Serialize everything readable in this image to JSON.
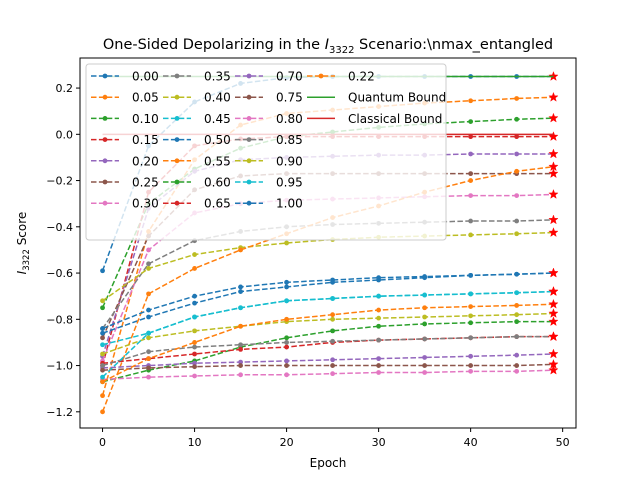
{
  "chart_data": {
    "type": "line",
    "title": {
      "pre": "One-Sided Depolarizing in the ",
      "sym": "I",
      "sub": "3322",
      "post": " Scenario:\\nmax_entangled"
    },
    "xlabel": "Epoch",
    "ylabel": {
      "sym": "I",
      "sub": "3322",
      "post": " Score"
    },
    "xlim": [
      -2.45,
      51.45
    ],
    "ylim": [
      -1.27,
      0.33
    ],
    "xticks": [
      0,
      10,
      20,
      30,
      40,
      50
    ],
    "yticks": [
      -1.2,
      -1.0,
      -0.8,
      -0.6,
      -0.4,
      -0.2,
      0.0,
      0.2
    ],
    "ytick_labels": [
      "−1.2",
      "−1.0",
      "−0.8",
      "−0.6",
      "−0.4",
      "−0.2",
      "0.0",
      "0.2"
    ],
    "x": [
      0,
      5,
      10,
      15,
      20,
      25,
      30,
      35,
      40,
      45,
      49
    ],
    "series": [
      {
        "name": "0.00",
        "color": "#1f77b4",
        "values": [
          -0.59,
          -0.05,
          0.14,
          0.22,
          0.245,
          0.25,
          0.25,
          0.25,
          0.25,
          0.25,
          0.25
        ]
      },
      {
        "name": "0.05",
        "color": "#ff7f0e",
        "values": [
          -1.13,
          -0.42,
          -0.11,
          0.04,
          0.09,
          0.105,
          0.12,
          0.135,
          0.145,
          0.155,
          0.16
        ]
      },
      {
        "name": "0.10",
        "color": "#2ca02c",
        "values": [
          -0.75,
          -0.3,
          -0.15,
          -0.06,
          -0.01,
          0.01,
          0.03,
          0.045,
          0.055,
          0.065,
          0.07
        ]
      },
      {
        "name": "0.15",
        "color": "#d62728",
        "values": [
          -1.0,
          -0.25,
          -0.05,
          -0.02,
          -0.01,
          -0.01,
          -0.01,
          -0.01,
          -0.01,
          -0.01,
          -0.01
        ]
      },
      {
        "name": "0.20",
        "color": "#9467bd",
        "values": [
          -0.96,
          -0.32,
          -0.16,
          -0.11,
          -0.1,
          -0.095,
          -0.09,
          -0.09,
          -0.085,
          -0.085,
          -0.085
        ]
      },
      {
        "name": "0.25",
        "color": "#8c564b",
        "values": [
          -0.88,
          -0.44,
          -0.24,
          -0.18,
          -0.17,
          -0.17,
          -0.17,
          -0.17,
          -0.17,
          -0.17,
          -0.17
        ]
      },
      {
        "name": "0.30",
        "color": "#e377c2",
        "values": [
          -0.98,
          -0.5,
          -0.34,
          -0.3,
          -0.285,
          -0.28,
          -0.275,
          -0.27,
          -0.265,
          -0.265,
          -0.26
        ]
      },
      {
        "name": "0.35",
        "color": "#7f7f7f",
        "values": [
          -0.84,
          -0.56,
          -0.46,
          -0.42,
          -0.4,
          -0.39,
          -0.385,
          -0.38,
          -0.375,
          -0.375,
          -0.37
        ]
      },
      {
        "name": "0.40",
        "color": "#bcbd22",
        "values": [
          -0.72,
          -0.58,
          -0.52,
          -0.49,
          -0.47,
          -0.455,
          -0.445,
          -0.44,
          -0.435,
          -0.43,
          -0.425
        ]
      },
      {
        "name": "0.45",
        "color": "#17becf",
        "values": [
          -0.91,
          -0.86,
          -0.79,
          -0.75,
          -0.72,
          -0.71,
          -0.7,
          -0.695,
          -0.69,
          -0.685,
          -0.68
        ]
      },
      {
        "name": "0.50",
        "color": "#1f77b4",
        "values": [
          -0.86,
          -0.79,
          -0.73,
          -0.68,
          -0.66,
          -0.64,
          -0.63,
          -0.62,
          -0.61,
          -0.605,
          -0.6
        ]
      },
      {
        "name": "0.55",
        "color": "#ff7f0e",
        "values": [
          -1.2,
          -0.69,
          -0.58,
          -0.5,
          -0.43,
          -0.36,
          -0.31,
          -0.25,
          -0.2,
          -0.16,
          -0.14
        ]
      },
      {
        "name": "0.60",
        "color": "#2ca02c",
        "values": [
          -1.07,
          -1.02,
          -0.98,
          -0.92,
          -0.88,
          -0.85,
          -0.83,
          -0.82,
          -0.815,
          -0.81,
          -0.81
        ]
      },
      {
        "name": "0.65",
        "color": "#d62728",
        "values": [
          -0.99,
          -0.97,
          -0.95,
          -0.93,
          -0.92,
          -0.9,
          -0.89,
          -0.885,
          -0.88,
          -0.875,
          -0.875
        ]
      },
      {
        "name": "0.70",
        "color": "#9467bd",
        "values": [
          -1.01,
          -1.0,
          -0.99,
          -0.985,
          -0.98,
          -0.975,
          -0.97,
          -0.965,
          -0.96,
          -0.955,
          -0.95
        ]
      },
      {
        "name": "0.75",
        "color": "#8c564b",
        "values": [
          -1.02,
          -1.01,
          -1.005,
          -1.0,
          -1.0,
          -1.0,
          -1.0,
          -1.0,
          -1.0,
          -1.0,
          -0.995
        ]
      },
      {
        "name": "0.80",
        "color": "#e377c2",
        "values": [
          -1.06,
          -1.05,
          -1.045,
          -1.04,
          -1.04,
          -1.035,
          -1.03,
          -1.03,
          -1.025,
          -1.025,
          -1.02
        ]
      },
      {
        "name": "0.85",
        "color": "#7f7f7f",
        "values": [
          -1.0,
          -0.94,
          -0.92,
          -0.91,
          -0.9,
          -0.895,
          -0.89,
          -0.885,
          -0.88,
          -0.875,
          -0.875
        ]
      },
      {
        "name": "0.90",
        "color": "#bcbd22",
        "values": [
          -0.95,
          -0.88,
          -0.85,
          -0.83,
          -0.81,
          -0.8,
          -0.795,
          -0.79,
          -0.785,
          -0.78,
          -0.775
        ]
      },
      {
        "name": "0.95",
        "color": "#17becf",
        "values": [
          -1.05,
          -0.86,
          -0.79,
          -0.75,
          -0.72,
          -0.71,
          -0.7,
          -0.695,
          -0.69,
          -0.685,
          -0.68
        ]
      },
      {
        "name": "1.00",
        "color": "#1f77b4",
        "values": [
          -0.84,
          -0.76,
          -0.7,
          -0.66,
          -0.64,
          -0.63,
          -0.62,
          -0.615,
          -0.61,
          -0.605,
          -0.6
        ]
      },
      {
        "name": "0.22",
        "color": "#ff7f0e",
        "values": [
          -1.07,
          -0.97,
          -0.9,
          -0.83,
          -0.8,
          -0.78,
          -0.76,
          -0.75,
          -0.745,
          -0.74,
          -0.735
        ]
      }
    ],
    "reference_lines": [
      {
        "name": "Quantum Bound",
        "color": "#2ca02c",
        "y": 0.25
      },
      {
        "name": "Classical Bound",
        "color": "#d62728",
        "y": 0.0
      }
    ],
    "legend": {
      "placement": "upper-left",
      "columns": 4
    },
    "grid": false
  }
}
